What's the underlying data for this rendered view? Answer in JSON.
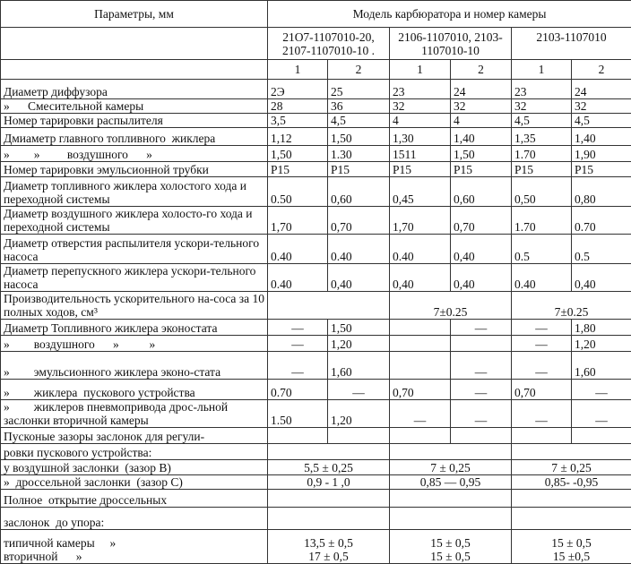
{
  "header": {
    "params_label": "Параметры, мм",
    "model_label": "Модель карбюратора и номер камеры",
    "models": [
      "21О7-1107010-20, 2107-1107010-10 .",
      "2106-1107010, 2103-1107010-10",
      "2103-1107010"
    ],
    "chambers": [
      "1",
      "2",
      "1",
      "2",
      "1",
      "2"
    ]
  },
  "rows": [
    {
      "label": "Диаметр диффузора",
      "cells": [
        "2Э",
        "25",
        "23",
        "24",
        "23",
        "24"
      ]
    },
    {
      "label": "»      Смесительной камеры",
      "cells": [
        "28",
        "36",
        "32",
        "32",
        "32",
        "32"
      ]
    },
    {
      "label": "Номер тарировки распылителя",
      "cells": [
        "3,5",
        "4,5",
        "4",
        "4",
        "4,5",
        "4,5"
      ]
    },
    {
      "label": "Дмиаметр главного топливного  жиклера",
      "cells": [
        "1,12",
        "1,50",
        "1,30",
        "1,40",
        "1,35",
        "1,40"
      ]
    },
    {
      "label": "»        »         воздушного      »",
      "cells": [
        "1,50",
        "1.30",
        "1511",
        "1,50",
        "1.70",
        "1,90"
      ]
    },
    {
      "label": "Номер тарировки эмульсионной трубки",
      "cells": [
        "P15",
        "P15",
        "P15",
        "P15",
        "P15",
        "P15"
      ]
    },
    {
      "label": "Диаметр топливного жиклера холостого хода и переходной системы",
      "cells": [
        "0.50",
        "0,60",
        "0,45",
        "0,60",
        "0,50",
        "0,80"
      ]
    },
    {
      "label": "Диаметр воздушного жиклера холосто-го хода и переходной системы",
      "cells": [
        "1,70",
        "0,70",
        "1,70",
        "0,70",
        "1.70",
        "0.70"
      ]
    },
    {
      "label": "Диаметр отверстия распылителя ускори-тельного насоса",
      "cells": [
        "0.40",
        "0.40",
        "0.40",
        "0,40",
        "0.5",
        "0.5"
      ]
    },
    {
      "label": "Диаметр перепускного жиклера ускори-тельного насоса",
      "cells": [
        "0.40",
        "0,40",
        "0,40",
        "0,40",
        "0.40",
        "0,40"
      ]
    },
    {
      "label": "Производительность ускорительного на-соса за 10 полных ходов, см³",
      "merged": [
        "",
        "7±0.25",
        "7±0.25"
      ]
    },
    {
      "label": "Диаметр Топливного жиклера эконостата",
      "cells": [
        "—",
        "1,50",
        "",
        "—",
        "—",
        "1,80"
      ]
    },
    {
      "label": "»        воздушного      »          »",
      "cells": [
        "—",
        "1,20",
        "",
        "",
        "—",
        "1,20"
      ]
    },
    {
      "label": "»        эмульсионного жиклера эконо-стата",
      "cells": [
        "—",
        "1,60",
        "",
        "—",
        "—",
        "1,60"
      ]
    },
    {
      "label": "»        жиклера  пускового устройства",
      "cells": [
        "0.70",
        "—",
        "0,70",
        "—",
        "0,70",
        "—"
      ]
    },
    {
      "label": "»        жиклеров пневмопривода дрос-льной заслонки вторичной камеры",
      "cells": [
        "1.50",
        "1,20",
        "—",
        "—",
        "—",
        "—"
      ]
    },
    {
      "label": "Пусконые зазоры заслонок для регули-",
      "cells": [
        "",
        "",
        "",
        "",
        "",
        ""
      ]
    },
    {
      "label": "ровки пускового устройства:",
      "merged": [
        "",
        "",
        ""
      ]
    },
    {
      "label": "у воздушной заслонки  (зазор В)",
      "merged": [
        "5,5 ± 0,25",
        "7 ± 0,25",
        "7 ± 0,25"
      ]
    },
    {
      "label": "»  дроссельной заслонки  (зазор С)",
      "merged": [
        "0,9 - 1 ,0",
        "0,85 — 0,95",
        "0,85- -0,95"
      ]
    },
    {
      "label": "Полное  открытие дроссельных",
      "merged": [
        "",
        "",
        ""
      ]
    },
    {
      "label": "заслонок  до упора:",
      "merged": [
        "",
        "",
        ""
      ]
    },
    {
      "label": "типичной камеры     »\nвторичной      »",
      "merged": [
        "13,5 ± 0,5\n17 ± 0,5",
        "15 ± 0,5\n15 ± 0,5",
        "15 ± 0,5\n15 ±0,5"
      ]
    }
  ]
}
